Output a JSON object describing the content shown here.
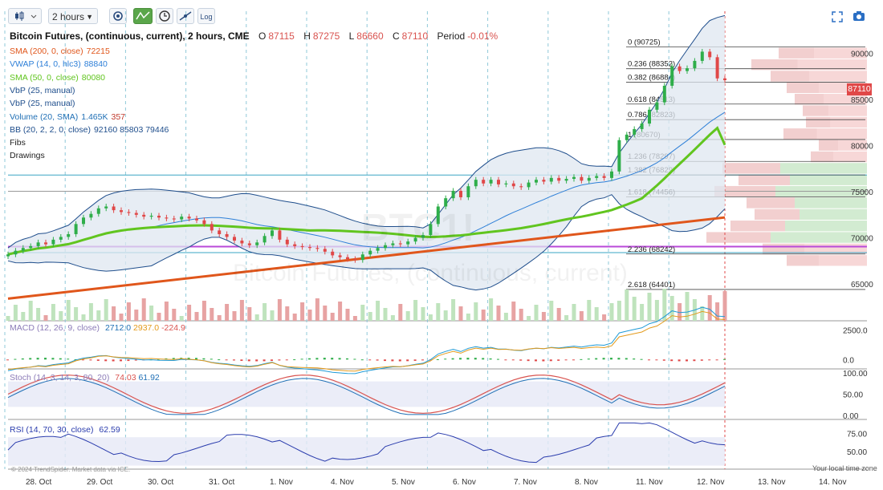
{
  "toolbar": {
    "timeframe": "2 hours",
    "log_label": "Log",
    "icons": [
      "candle-type-icon",
      "settings-gear-icon",
      "indicator-icon",
      "clock-icon",
      "drawing-tool-icon",
      "log-scale-icon",
      "fullscreen-icon",
      "camera-icon"
    ]
  },
  "header": {
    "title": "Bitcoin Futures, (continuous, current), 2 hours, CME",
    "o_label": "O",
    "o_value": "87115",
    "h_label": "H",
    "h_value": "87275",
    "l_label": "L",
    "l_value": "86660",
    "c_label": "C",
    "c_value": "87110",
    "period_label": "Period",
    "period_value": "-0.01%"
  },
  "legend": [
    {
      "name": "SMA (200, 0, close)",
      "value": "72215",
      "color": "#e0561b"
    },
    {
      "name": "VWAP (14, 0, hlc3)",
      "value": "88840",
      "color": "#2f80d8"
    },
    {
      "name": "SMA (50, 0, close)",
      "value": "80080",
      "color": "#61c51f"
    },
    {
      "name": "VbP (25, manual)",
      "value": "",
      "color": "#1f4e8c"
    },
    {
      "name": "VbP (25, manual)",
      "value": "",
      "color": "#1f4e8c"
    },
    {
      "name": "Volume (20, SMA)",
      "value": "1.465K",
      "value2": "357",
      "color": "#1f6fb5"
    },
    {
      "name": "BB (20, 2, 2, 0, close)",
      "value": "92160 85803 79446",
      "color": "#1f4e8c"
    },
    {
      "name": "Fibs",
      "value": "",
      "color": "#222"
    },
    {
      "name": "Drawings",
      "value": "",
      "color": "#222"
    }
  ],
  "watermark": {
    "symbol": "BTC1!",
    "name": "Bitcoin Futures, (continuous, current)"
  },
  "price_badge": "87110",
  "macd_legend": {
    "name": "MACD (12, 26, 9, close)",
    "v1": "2712.0",
    "v2": "2937.0",
    "v3": "-224.9"
  },
  "stoch_legend": {
    "name": "Stoch (14, 3, 14, 3, 80, 20)",
    "v1": "74.03",
    "v2": "61.92"
  },
  "rsi_legend": {
    "name": "RSI (14, 70, 30, close)",
    "v1": "62.59"
  },
  "credit": "© 2024 TrendSpider. Market data via ICE.",
  "local_time": "Your local time zone",
  "chart_data": {
    "type": "line",
    "title": "Bitcoin Futures, (continuous, current), 2 hours, CME",
    "x_labels": [
      "28. Oct",
      "29. Oct",
      "30. Oct",
      "31. Oct",
      "1. Nov",
      "4. Nov",
      "5. Nov",
      "6. Nov",
      "7. Nov",
      "8. Nov",
      "11. Nov",
      "12. Nov",
      "13. Nov",
      "14. Nov"
    ],
    "ylim": [
      61000,
      92500
    ],
    "y_ticks": [
      90000,
      85000,
      80000,
      75000,
      70000,
      65000
    ],
    "close_series": [
      {
        "day": "28. Oct",
        "values": [
          68200,
          68600,
          68900,
          69100,
          69500,
          69300,
          69800,
          70100
        ]
      },
      {
        "day": "29. Oct",
        "values": [
          70400,
          71500,
          72200,
          72600,
          73200,
          73400,
          73000,
          72800
        ]
      },
      {
        "day": "30. Oct",
        "values": [
          72700,
          72500,
          72300,
          72400,
          72200,
          72100,
          72000,
          72300
        ]
      },
      {
        "day": "31. Oct",
        "values": [
          72100,
          71900,
          71500,
          70800,
          70400,
          70100,
          69700,
          69400
        ]
      },
      {
        "day": "1. Nov",
        "values": [
          69200,
          69500,
          70200,
          70800,
          69800,
          69300,
          69100,
          69000
        ]
      },
      {
        "day": "4. Nov",
        "values": [
          68900,
          68800,
          68500,
          68100,
          67900,
          67700,
          67600,
          68200
        ]
      },
      {
        "day": "5. Nov",
        "values": [
          68600,
          68900,
          69200,
          69400,
          69300,
          69600,
          70000,
          70300
        ]
      },
      {
        "day": "6. Nov",
        "values": [
          71500,
          73400,
          74300,
          75100,
          74400,
          75600,
          76300,
          75900
        ]
      },
      {
        "day": "7. Nov",
        "values": [
          76300,
          75800,
          75900,
          75600,
          75500,
          76000,
          76300,
          76100
        ]
      },
      {
        "day": "8. Nov",
        "values": [
          76500,
          76200,
          76400,
          76600,
          76200,
          76500,
          76700,
          76500
        ]
      },
      {
        "day": "11. Nov",
        "values": [
          77200,
          80600,
          81200,
          81800,
          82400,
          83900,
          84700,
          86500
        ]
      },
      {
        "day": "12. Nov",
        "values": [
          88600,
          88100,
          88400,
          89200,
          90200,
          89600,
          87300,
          87110
        ]
      }
    ],
    "overlays": [
      {
        "name": "SMA (200, 0, close)",
        "start": 63400,
        "end": 72215,
        "color": "#e0561b"
      },
      {
        "name": "SMA (50, 0, close)",
        "last": 80080,
        "color": "#61c51f"
      },
      {
        "name": "BB (20, 2, 2, 0, close)",
        "upper": 92160,
        "middle": 85803,
        "lower": 79446
      }
    ],
    "fib_levels": [
      {
        "label": "0 (90725)",
        "value": 90725
      },
      {
        "label": "0.236 (88352)",
        "value": 88352
      },
      {
        "label": "0.382 (86884)",
        "value": 86884
      },
      {
        "label": "0.618 (84513)",
        "value": 84513
      },
      {
        "label": "0.786 (82823)",
        "value": 82823
      },
      {
        "label": "1 (80670)",
        "value": 80670
      },
      {
        "label": "1.236 (78297)",
        "value": 78297
      },
      {
        "label": "1.382 (76829)",
        "value": 76829
      },
      {
        "label": "1.618 (74456)",
        "value": 74456
      },
      {
        "label": "2.236 (68242)",
        "value": 68242
      },
      {
        "label": "2.618 (64401)",
        "value": 64401
      }
    ],
    "horizontal_lines": [
      {
        "value": 76820,
        "color": "#3aa6c4"
      },
      {
        "value": 75050,
        "color": "#9a9a9a"
      },
      {
        "value": 69050,
        "color": "#b94ad8"
      },
      {
        "value": 68400,
        "color": "#3aa6c4"
      }
    ],
    "volume_profile_levels": [
      90000,
      88750,
      87500,
      86250,
      85000,
      83750,
      82500,
      81250,
      80000,
      78750,
      77500,
      76250,
      75000,
      73750,
      72500,
      71250,
      70000,
      68750,
      67500
    ],
    "macd": {
      "ticks": [
        "2500.0",
        "0.0"
      ],
      "ylim": [
        -800,
        3300
      ]
    },
    "stoch": {
      "ticks": [
        "100.00",
        "50.00",
        "0.00"
      ],
      "ylim": [
        0,
        100
      ],
      "bands": [
        20,
        80
      ]
    },
    "rsi": {
      "ticks": [
        "75.00",
        "50.00"
      ],
      "ylim": [
        25,
        95
      ],
      "bands": [
        30,
        70
      ]
    }
  }
}
